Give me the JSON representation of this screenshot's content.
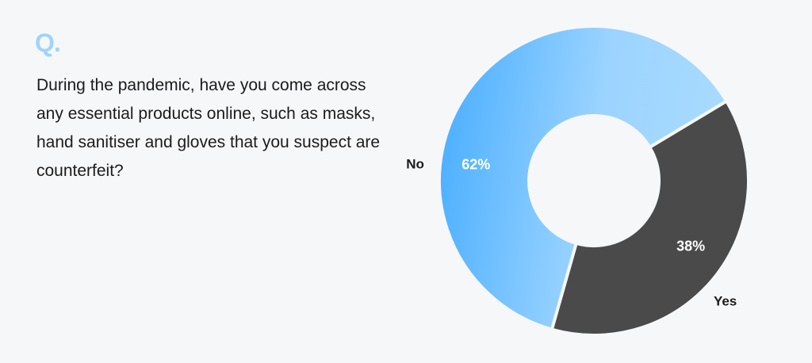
{
  "heading": "Q.",
  "question": "During the pandemic, have you come across any essential products online, such as masks, hand sanitiser and gloves that you suspect are counterfeit?",
  "chart_data": {
    "type": "pie",
    "donut": true,
    "title": "",
    "categories": [
      "Yes",
      "No"
    ],
    "values": [
      38,
      62
    ],
    "value_labels": [
      "38%",
      "62%"
    ],
    "colors": [
      "#4a4a4a",
      "#6bbcf9"
    ],
    "gradient_colors": {
      "No": [
        "#45acff",
        "#a3d8ff"
      ]
    },
    "legend": "none"
  }
}
